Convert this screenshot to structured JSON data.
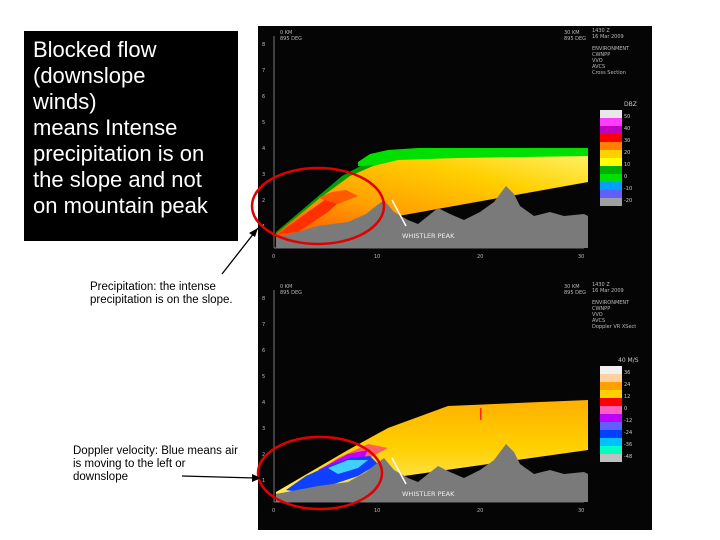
{
  "callout": {
    "lines": [
      "Blocked flow",
      "(downslope",
      "winds)",
      "means Intense",
      "precipitation is on",
      "the slope and not",
      "on mountain peak"
    ]
  },
  "notes": {
    "precip_line1": "Precipitation: the intense",
    "precip_line2": "precipitation is on the slope.",
    "doppler_line1": "Doppler velocity: Blue means air",
    "doppler_line2": "is moving to the left or",
    "doppler_line3": "downslope"
  },
  "panels": {
    "top": {
      "left_header_1": "0 KM",
      "left_header_2": "895 DEG",
      "right_header_1": "30 KM",
      "right_header_2": "895 DEG",
      "time": "1430 Z",
      "date": "16 Mar 2009",
      "info": [
        "ENVIRONMENT",
        "CWNPP",
        "VVO",
        "AVCS",
        "Cross Section"
      ],
      "y_ticks": [
        "8",
        "7",
        "6",
        "5",
        "4",
        "3",
        "2",
        "1"
      ],
      "x_ticks": [
        "0",
        "10",
        "20",
        "30"
      ],
      "peak_label": "WHISTLER PEAK",
      "legend_unit": "DBZ",
      "legend_labels": [
        "50",
        "40",
        "30",
        "20",
        "10",
        "0",
        "-10",
        "-20"
      ],
      "legend_colors": [
        "#e8e8e8",
        "#ff3cff",
        "#c000c0",
        "#ff0000",
        "#ff8000",
        "#ffd000",
        "#ffff00",
        "#00b000",
        "#00e000",
        "#00a0ff",
        "#6060ff",
        "#a0a0a0"
      ]
    },
    "bottom": {
      "left_header_1": "0 KM",
      "left_header_2": "895 DEG",
      "right_header_1": "30 KM",
      "right_header_2": "895 DEG",
      "time": "1430 Z",
      "date": "16 Mar 2009",
      "info": [
        "ENVIRONMENT",
        "CWNPP",
        "VVO",
        "AVCS",
        "Doppler VR XSect"
      ],
      "y_ticks": [
        "8",
        "7",
        "6",
        "5",
        "4",
        "3",
        "2",
        "1"
      ],
      "x_ticks": [
        "0",
        "10",
        "20",
        "30"
      ],
      "peak_label": "WHISTLER PEAK",
      "legend_unit": "40 M/S",
      "legend_labels": [
        "36",
        "24",
        "12",
        "0",
        "-12",
        "-24",
        "-36",
        "-48"
      ],
      "legend_colors": [
        "#f0f0f0",
        "#ffd0a0",
        "#ffa000",
        "#ffd000",
        "#ff0000",
        "#ff60c0",
        "#c000ff",
        "#6060ff",
        "#0040ff",
        "#00c0ff",
        "#00ffc0",
        "#c0c0c0"
      ]
    }
  },
  "colors": {
    "annotation_circle": "#e00000",
    "arrow": "#000000",
    "terrain": "#7a7a7a"
  }
}
